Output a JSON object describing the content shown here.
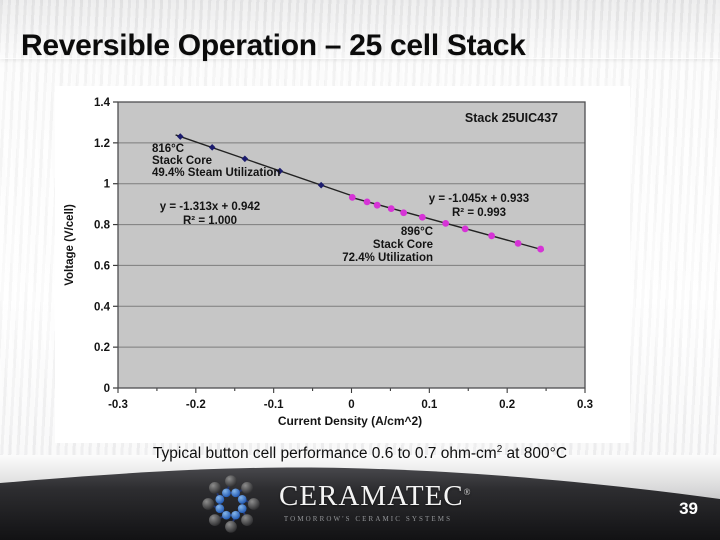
{
  "slide": {
    "title": "Reversible Operation – 25 cell Stack",
    "page_number": "39",
    "caption": {
      "prefix": "Typical button cell performance 0.6 to 0.7 ohm-cm",
      "sup": "2",
      "suffix": " at 800°C"
    }
  },
  "footer": {
    "brand": "CERAMATEC",
    "registered": "®",
    "tagline": "TOMORROW'S CERAMIC SYSTEMS"
  },
  "chart_data": {
    "type": "scatter",
    "title_box": "Stack 25UIC437",
    "xlabel": "Current Density (A/cm^2)",
    "ylabel": "Voltage (V/cell)",
    "xlim": [
      -0.3,
      0.3
    ],
    "ylim": [
      0,
      1.4
    ],
    "x_ticks": [
      -0.3,
      -0.2,
      -0.1,
      0,
      0.1,
      0.2,
      0.3
    ],
    "x_tick_labels": [
      "-0.3",
      "-0.2",
      "-0.1",
      "0",
      "0.1",
      "0.2",
      "0.3"
    ],
    "x_minor_step": 0.05,
    "y_ticks": [
      0,
      0.2,
      0.4,
      0.6,
      0.8,
      1,
      1.2,
      1.4
    ],
    "y_tick_labels": [
      "0",
      "0.2",
      "0.4",
      "0.6",
      "0.8",
      "1",
      "1.2",
      "1.4"
    ],
    "grid": "horizontal",
    "plot_bg": "#c6c6c6",
    "grid_color": "#7d7d7d",
    "series": [
      {
        "name": "electrolysis-816C",
        "marker": "diamond",
        "color": "#1c1c6e",
        "points": [
          [
            -0.22,
            1.231
          ],
          [
            -0.179,
            1.178
          ],
          [
            -0.137,
            1.122
          ],
          [
            -0.092,
            1.062
          ],
          [
            -0.039,
            0.993
          ]
        ],
        "trendline": {
          "slope": -1.313,
          "intercept": 0.942,
          "x_start": -0.226,
          "x_end": 0.003,
          "label": "y = -1.313x + 0.942",
          "r2": "R² = 1.000"
        },
        "annotation": {
          "lines": [
            "816°C",
            "Stack Core",
            "49.4% Steam Utilization"
          ]
        }
      },
      {
        "name": "fuelcell-896C",
        "marker": "circle",
        "color": "#d633d6",
        "points": [
          [
            0.001,
            0.933
          ],
          [
            0.02,
            0.911
          ],
          [
            0.033,
            0.895
          ],
          [
            0.051,
            0.878
          ],
          [
            0.067,
            0.858
          ],
          [
            0.091,
            0.836
          ],
          [
            0.121,
            0.806
          ],
          [
            0.146,
            0.779
          ],
          [
            0.18,
            0.745
          ],
          [
            0.214,
            0.708
          ],
          [
            0.243,
            0.68
          ]
        ],
        "trendline": {
          "slope": -1.045,
          "intercept": 0.933,
          "x_start": 0.0,
          "x_end": 0.247,
          "label": "y = -1.045x + 0.933",
          "r2": "R² = 0.993"
        },
        "annotation": {
          "lines": [
            "896°C",
            "Stack Core",
            "72.4% Utilization"
          ]
        }
      }
    ]
  }
}
